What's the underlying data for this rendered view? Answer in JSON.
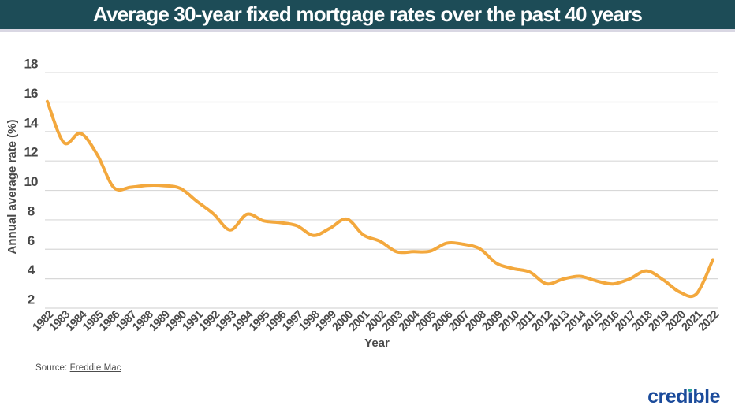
{
  "header": {
    "title": "Average 30-year fixed mortgage rates over the past 40 years",
    "background_color": "#1D4C57",
    "text_color": "#FFFFFF"
  },
  "chart_data": {
    "type": "line",
    "title": "Average 30-year fixed mortgage rates over the past 40 years",
    "xlabel": "Year",
    "ylabel": "Annual average rate (%)",
    "x": [
      "1982",
      "1983",
      "1984",
      "1985",
      "1986",
      "1987",
      "1988",
      "1989",
      "1990",
      "1991",
      "1992",
      "1993",
      "1994",
      "1995",
      "1996",
      "1997",
      "1998",
      "1999",
      "2000",
      "2001",
      "2002",
      "2003",
      "2004",
      "2005",
      "2006",
      "2007",
      "2008",
      "2009",
      "2010",
      "2011",
      "2012",
      "2013",
      "2014",
      "2015",
      "2016",
      "2017",
      "2018",
      "2019",
      "2020",
      "2021",
      "2022"
    ],
    "values": [
      16.04,
      13.24,
      13.88,
      12.43,
      10.19,
      10.21,
      10.34,
      10.32,
      10.13,
      9.25,
      8.39,
      7.31,
      8.38,
      7.93,
      7.81,
      7.6,
      6.94,
      7.44,
      8.05,
      6.97,
      6.54,
      5.83,
      5.84,
      5.87,
      6.41,
      6.34,
      6.03,
      5.04,
      4.69,
      4.45,
      3.66,
      3.98,
      4.17,
      3.85,
      3.65,
      3.99,
      4.54,
      3.94,
      3.1,
      2.96,
      5.3
    ],
    "ylim": [
      2,
      18
    ],
    "ytick_step": 2,
    "yticks": [
      2,
      4,
      6,
      8,
      10,
      12,
      14,
      16,
      18
    ],
    "grid": "horizontal",
    "gridline_color": "#D8D8D8",
    "legend": "none",
    "line_color": "#F3A83D",
    "line_width": 4
  },
  "source": {
    "label": "Source:",
    "link_text": "Freddie Mac"
  },
  "logo": {
    "text": "credible",
    "part_before_i": "cred",
    "i_char": "ı",
    "part_after_i": "ble",
    "color": "#1B4B9B",
    "dot_color": "#27A395"
  }
}
